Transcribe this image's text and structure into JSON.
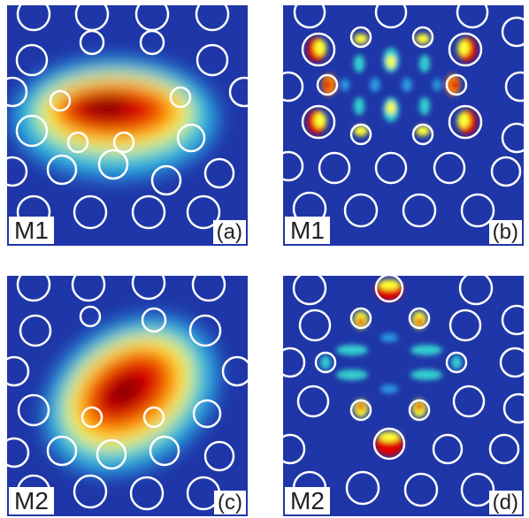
{
  "colors": {
    "background": "#1f36a8",
    "hole_outline": "#ffffff",
    "colormap": [
      "#7a0000",
      "#e00000",
      "#ff8a00",
      "#ffff33",
      "#33d0d0",
      "#2a9ae0",
      "#1f36a8"
    ]
  },
  "panels": [
    {
      "id": "a",
      "mode_label": "M1",
      "panel_letter": "(a)",
      "field": "measured intensity, mode M1"
    },
    {
      "id": "b",
      "mode_label": "M1",
      "panel_letter": "(b)",
      "field": "simulated field, mode M1"
    },
    {
      "id": "c",
      "mode_label": "M2",
      "panel_letter": "(c)",
      "field": "measured intensity, mode M2"
    },
    {
      "id": "d",
      "mode_label": "M2",
      "panel_letter": "(d)",
      "field": "simulated field, mode M2"
    }
  ]
}
